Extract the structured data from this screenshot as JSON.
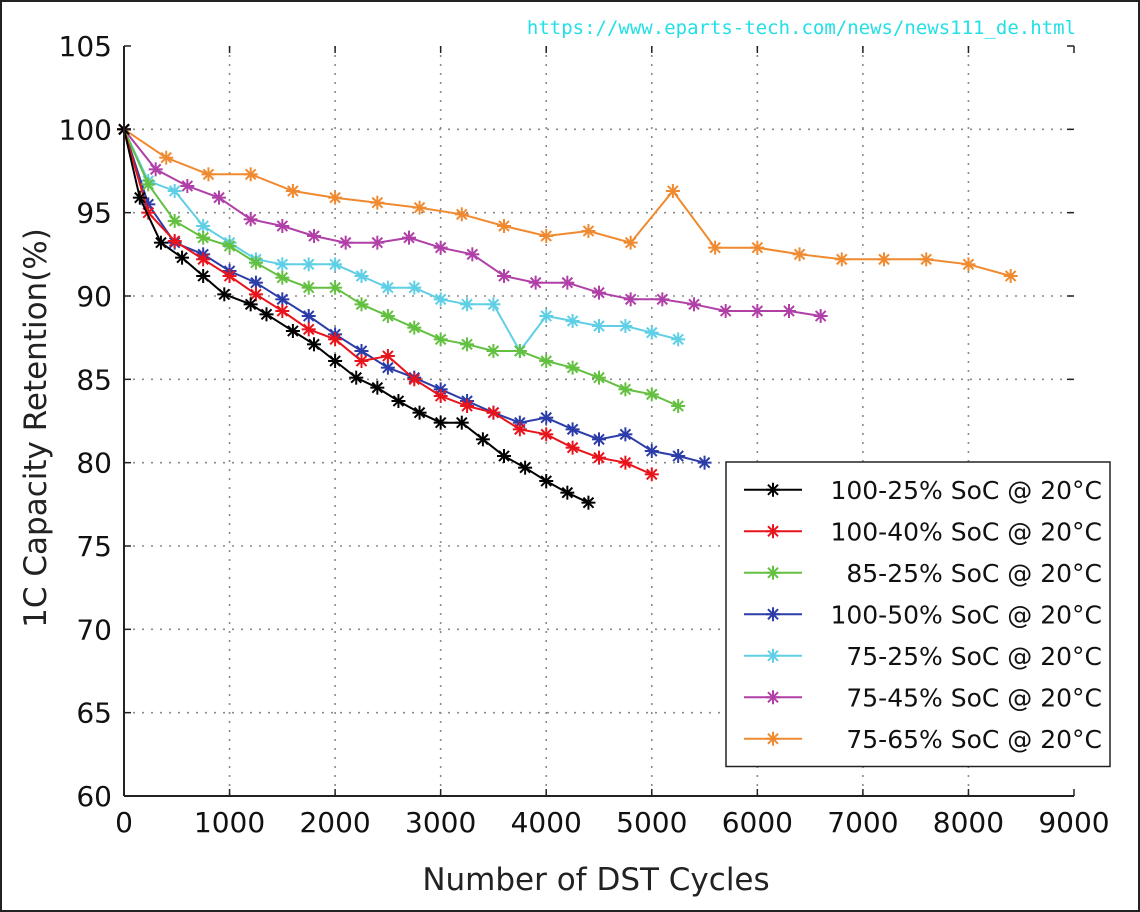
{
  "watermark": "https://www.eparts-tech.com/news/news111_de.html",
  "chart_data": {
    "type": "line",
    "title": "",
    "xlabel": "Number of DST Cycles",
    "ylabel": "1C Capacity Retention(%)",
    "xlim": [
      0,
      9000
    ],
    "ylim": [
      60,
      105
    ],
    "xticks": [
      0,
      1000,
      2000,
      3000,
      4000,
      5000,
      6000,
      7000,
      8000,
      9000
    ],
    "yticks": [
      60,
      65,
      70,
      75,
      80,
      85,
      90,
      95,
      100,
      105
    ],
    "xtick_labels": [
      "0",
      "1000",
      "2000",
      "3000",
      "4000",
      "5000",
      "6000",
      "7000",
      "8000",
      "9000"
    ],
    "ytick_labels": [
      "60",
      "65",
      "70",
      "75",
      "80",
      "85",
      "90",
      "95",
      "100",
      "105"
    ],
    "grid": true,
    "legend_position": "lower-right",
    "marker": "asterisk",
    "series": [
      {
        "name": "100-25% SoC @ 20°C",
        "color": "#000000",
        "x": [
          0,
          150,
          350,
          550,
          750,
          950,
          1200,
          1350,
          1600,
          1800,
          2000,
          2200,
          2400,
          2600,
          2800,
          3000,
          3200,
          3400,
          3600,
          3800,
          4000,
          4200,
          4400
        ],
        "y": [
          100,
          95.9,
          93.2,
          92.3,
          91.2,
          90.1,
          89.5,
          88.9,
          87.9,
          87.1,
          86.1,
          85.1,
          84.5,
          83.7,
          83.0,
          82.4,
          82.4,
          81.4,
          80.4,
          79.7,
          78.9,
          78.2,
          77.6
        ]
      },
      {
        "name": "100-40% SoC @ 20°C",
        "color": "#e8141c",
        "x": [
          0,
          230,
          480,
          750,
          1000,
          1250,
          1500,
          1750,
          2000,
          2250,
          2500,
          2750,
          3000,
          3250,
          3500,
          3750,
          4000,
          4250,
          4500,
          4750,
          5000
        ],
        "y": [
          100,
          95.0,
          93.3,
          92.2,
          91.2,
          90.1,
          89.1,
          88.0,
          87.4,
          86.1,
          86.4,
          85.0,
          84.0,
          83.4,
          83.0,
          82.0,
          81.7,
          80.9,
          80.3,
          80.0,
          79.3
        ]
      },
      {
        "name": "85-25% SoC @ 20°C",
        "color": "#63c040",
        "x": [
          0,
          230,
          480,
          750,
          1000,
          1250,
          1500,
          1750,
          2000,
          2250,
          2500,
          2750,
          3000,
          3250,
          3500,
          3750,
          4000,
          4250,
          4500,
          4750,
          5000,
          5250
        ],
        "y": [
          100,
          96.7,
          94.5,
          93.5,
          93.0,
          92.0,
          91.1,
          90.5,
          90.5,
          89.5,
          88.8,
          88.1,
          87.4,
          87.1,
          86.7,
          86.7,
          86.1,
          85.7,
          85.1,
          84.4,
          84.1,
          83.4
        ]
      },
      {
        "name": "100-50% SoC @ 20°C",
        "color": "#2c3ca8",
        "x": [
          0,
          230,
          480,
          750,
          1000,
          1250,
          1500,
          1750,
          2000,
          2250,
          2500,
          2750,
          3000,
          3250,
          3500,
          3750,
          4000,
          4250,
          4500,
          4750,
          5000,
          5250,
          5500
        ],
        "y": [
          100,
          95.5,
          93.2,
          92.5,
          91.5,
          90.8,
          89.8,
          88.8,
          87.7,
          86.7,
          85.7,
          85.1,
          84.4,
          83.7,
          83.0,
          82.4,
          82.7,
          82.0,
          81.4,
          81.7,
          80.7,
          80.4,
          80.0
        ]
      },
      {
        "name": "75-25% SoC @ 20°C",
        "color": "#5fcfe6",
        "x": [
          0,
          230,
          480,
          750,
          1000,
          1250,
          1500,
          1750,
          2000,
          2250,
          2500,
          2750,
          3000,
          3250,
          3500,
          3750,
          4000,
          4250,
          4500,
          4750,
          5000,
          5250
        ],
        "y": [
          100,
          96.9,
          96.3,
          94.2,
          93.2,
          92.2,
          91.9,
          91.9,
          91.9,
          91.2,
          90.5,
          90.5,
          89.8,
          89.5,
          89.5,
          86.7,
          88.8,
          88.5,
          88.2,
          88.2,
          87.8,
          87.4
        ]
      },
      {
        "name": "75-45% SoC @ 20°C",
        "color": "#b040a8",
        "x": [
          0,
          300,
          600,
          900,
          1200,
          1500,
          1800,
          2100,
          2400,
          2700,
          3000,
          3300,
          3600,
          3900,
          4200,
          4500,
          4800,
          5100,
          5400,
          5700,
          6000,
          6300,
          6600
        ],
        "y": [
          100,
          97.6,
          96.6,
          95.9,
          94.6,
          94.2,
          93.6,
          93.2,
          93.2,
          93.5,
          92.9,
          92.5,
          91.2,
          90.8,
          90.8,
          90.2,
          89.8,
          89.8,
          89.5,
          89.1,
          89.1,
          89.1,
          88.8
        ]
      },
      {
        "name": "75-65% SoC @ 20°C",
        "color": "#f08a30",
        "x": [
          0,
          400,
          800,
          1200,
          1600,
          2000,
          2400,
          2800,
          3200,
          3600,
          4000,
          4400,
          4800,
          5200,
          5600,
          6000,
          6400,
          6800,
          7200,
          7600,
          8000,
          8400
        ],
        "y": [
          100,
          98.3,
          97.3,
          97.3,
          96.3,
          95.9,
          95.6,
          95.3,
          94.9,
          94.2,
          93.6,
          93.9,
          93.2,
          96.3,
          92.9,
          92.9,
          92.5,
          92.2,
          92.2,
          92.2,
          91.9,
          91.2
        ]
      }
    ]
  }
}
